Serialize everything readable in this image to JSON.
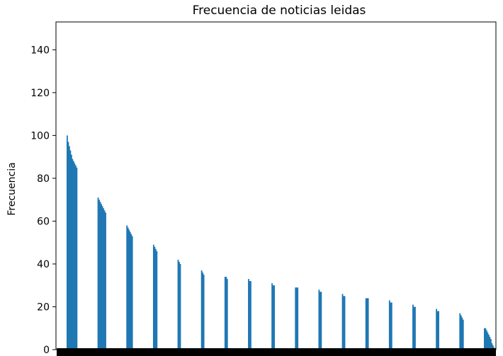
{
  "chart_data": {
    "type": "bar",
    "title": "Frecuencia de noticias leidas",
    "ylabel": "Frecuencia",
    "xlabel": "",
    "ylim": [
      0,
      153
    ],
    "yticks": [
      0,
      20,
      40,
      60,
      80,
      100,
      120,
      140
    ],
    "ytick_labels": [
      "0",
      "20",
      "40",
      "60",
      "80",
      "100",
      "120",
      "140"
    ],
    "x_tick_labels": "dense unreadable category labels along x-axis",
    "bar_color": "#1f77b4",
    "grid": false,
    "legend": "none",
    "bar_groups": [
      {
        "label": "grupo-1",
        "values": [
          100,
          97,
          95,
          93,
          91,
          89,
          88,
          87,
          86,
          85
        ]
      },
      {
        "label": "grupo-2",
        "values": [
          71,
          70,
          69,
          68,
          67,
          66,
          65,
          64
        ]
      },
      {
        "label": "grupo-3",
        "values": [
          58,
          57,
          56,
          55,
          54,
          53
        ]
      },
      {
        "label": "grupo-4",
        "values": [
          49,
          48,
          47,
          46
        ]
      },
      {
        "label": "grupo-5",
        "values": [
          42,
          41,
          40
        ]
      },
      {
        "label": "grupo-6",
        "values": [
          37,
          36,
          35
        ]
      },
      {
        "label": "grupo-7",
        "values": [
          34,
          34,
          33
        ]
      },
      {
        "label": "grupo-8",
        "values": [
          33,
          32,
          32
        ]
      },
      {
        "label": "grupo-9",
        "values": [
          31,
          30,
          30
        ]
      },
      {
        "label": "grupo-10",
        "values": [
          29,
          29,
          29
        ]
      },
      {
        "label": "grupo-11",
        "values": [
          28,
          27,
          27
        ]
      },
      {
        "label": "grupo-12",
        "values": [
          26,
          25,
          25
        ]
      },
      {
        "label": "grupo-13",
        "values": [
          24,
          24,
          24
        ]
      },
      {
        "label": "grupo-14",
        "values": [
          23,
          22,
          22
        ]
      },
      {
        "label": "grupo-15",
        "values": [
          21,
          20,
          20
        ]
      },
      {
        "label": "grupo-16",
        "values": [
          19,
          18,
          18
        ]
      },
      {
        "label": "grupo-17",
        "values": [
          17,
          16,
          15,
          14
        ]
      },
      {
        "label": "grupo-18",
        "values": [
          10,
          10,
          9,
          8,
          7,
          6,
          5,
          3,
          2,
          1
        ]
      }
    ]
  }
}
